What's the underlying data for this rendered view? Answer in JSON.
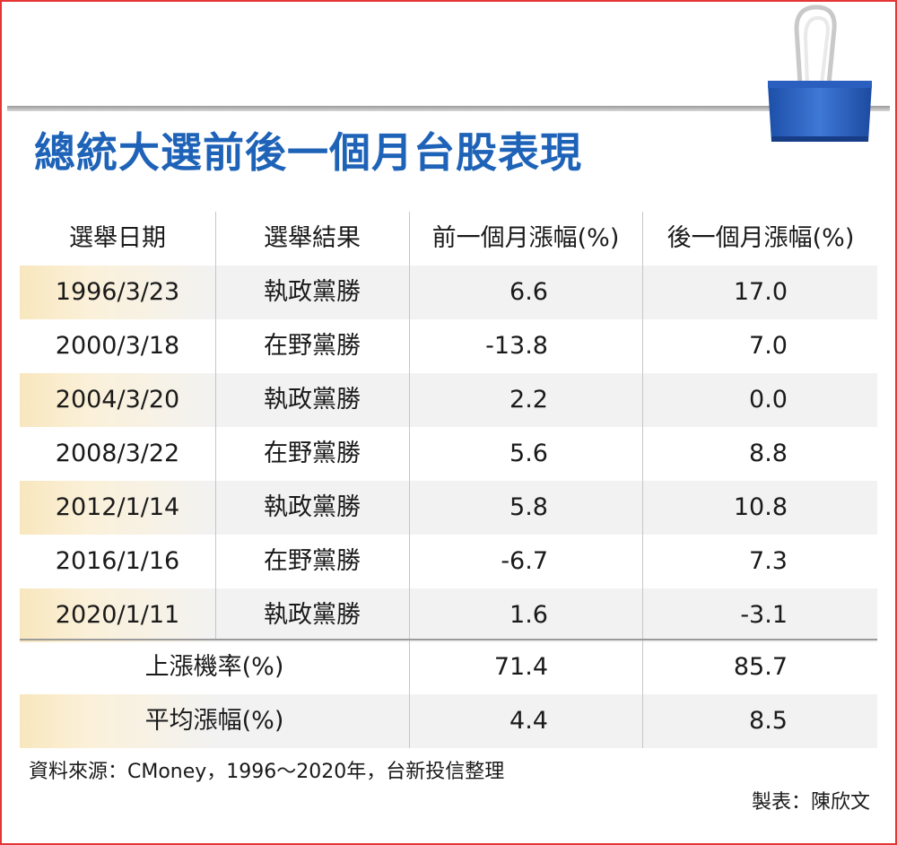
{
  "title": "總統大選前後一個月台股表現",
  "colors": {
    "title": "#1e63b8",
    "frame": "#e53535",
    "band_accent": "#f8e7be",
    "band": "#f2f2f2"
  },
  "icons": {
    "corner": "binder-clip-icon"
  },
  "headers": [
    "選舉日期",
    "選舉結果",
    "前一個月漲幅(%)",
    "後一個月漲幅(%)"
  ],
  "rows": [
    {
      "date": "1996/3/23",
      "result": "執政黨勝",
      "pre": "6.6",
      "post": "17.0"
    },
    {
      "date": "2000/3/18",
      "result": "在野黨勝",
      "pre": "-13.8",
      "post": "7.0"
    },
    {
      "date": "2004/3/20",
      "result": "執政黨勝",
      "pre": "2.2",
      "post": "0.0"
    },
    {
      "date": "2008/3/22",
      "result": "在野黨勝",
      "pre": "5.6",
      "post": "8.8"
    },
    {
      "date": "2012/1/14",
      "result": "執政黨勝",
      "pre": "5.8",
      "post": "10.8"
    },
    {
      "date": "2016/1/16",
      "result": "在野黨勝",
      "pre": "-6.7",
      "post": "7.3"
    },
    {
      "date": "2020/1/11",
      "result": "執政黨勝",
      "pre": "1.6",
      "post": "-3.1"
    }
  ],
  "summary": [
    {
      "label": "上漲機率(%)",
      "pre": "71.4",
      "post": "85.7"
    },
    {
      "label": "平均漲幅(%)",
      "pre": "4.4",
      "post": "8.5"
    }
  ],
  "source": "資料來源：CMoney，1996～2020年，台新投信整理",
  "credit": "製表：陳欣文",
  "chart_data": {
    "type": "table",
    "title": "總統大選前後一個月台股表現",
    "columns": [
      "選舉日期",
      "選舉結果",
      "前一個月漲幅(%)",
      "後一個月漲幅(%)"
    ],
    "rows": [
      [
        "1996/3/23",
        "執政黨勝",
        6.6,
        17.0
      ],
      [
        "2000/3/18",
        "在野黨勝",
        -13.8,
        7.0
      ],
      [
        "2004/3/20",
        "執政黨勝",
        2.2,
        0.0
      ],
      [
        "2008/3/22",
        "在野黨勝",
        5.6,
        8.8
      ],
      [
        "2012/1/14",
        "執政黨勝",
        5.8,
        10.8
      ],
      [
        "2016/1/16",
        "在野黨勝",
        -6.7,
        7.3
      ],
      [
        "2020/1/11",
        "執政黨勝",
        1.6,
        -3.1
      ]
    ],
    "summary_rows": [
      [
        "上漲機率(%)",
        71.4,
        85.7
      ],
      [
        "平均漲幅(%)",
        4.4,
        8.5
      ]
    ]
  }
}
